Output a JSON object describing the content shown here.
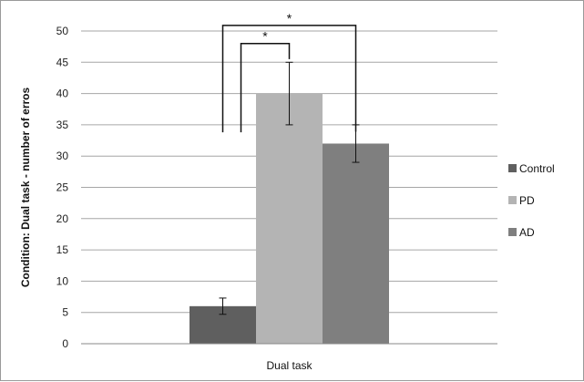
{
  "chart_data": {
    "type": "bar",
    "categories": [
      "Dual task"
    ],
    "series": [
      {
        "name": "Control",
        "values": [
          6
        ],
        "error": [
          1.3
        ],
        "color": "#5f5f5f"
      },
      {
        "name": "PD",
        "values": [
          40
        ],
        "error": [
          5
        ],
        "color": "#b4b4b4"
      },
      {
        "name": "AD",
        "values": [
          32
        ],
        "error": [
          3
        ],
        "color": "#7f7f7f"
      }
    ],
    "title": "",
    "xlabel": "",
    "ylabel": "Condition: Dual task - number of erros",
    "ylim": [
      0,
      50
    ],
    "yticks": [
      0,
      5,
      10,
      15,
      20,
      25,
      30,
      35,
      40,
      45,
      50
    ],
    "grid": true,
    "legend_position": "right",
    "significance": [
      {
        "between": [
          "Control",
          "AD"
        ],
        "label": "*"
      },
      {
        "between": [
          "Control",
          "PD"
        ],
        "label": "*"
      }
    ]
  }
}
